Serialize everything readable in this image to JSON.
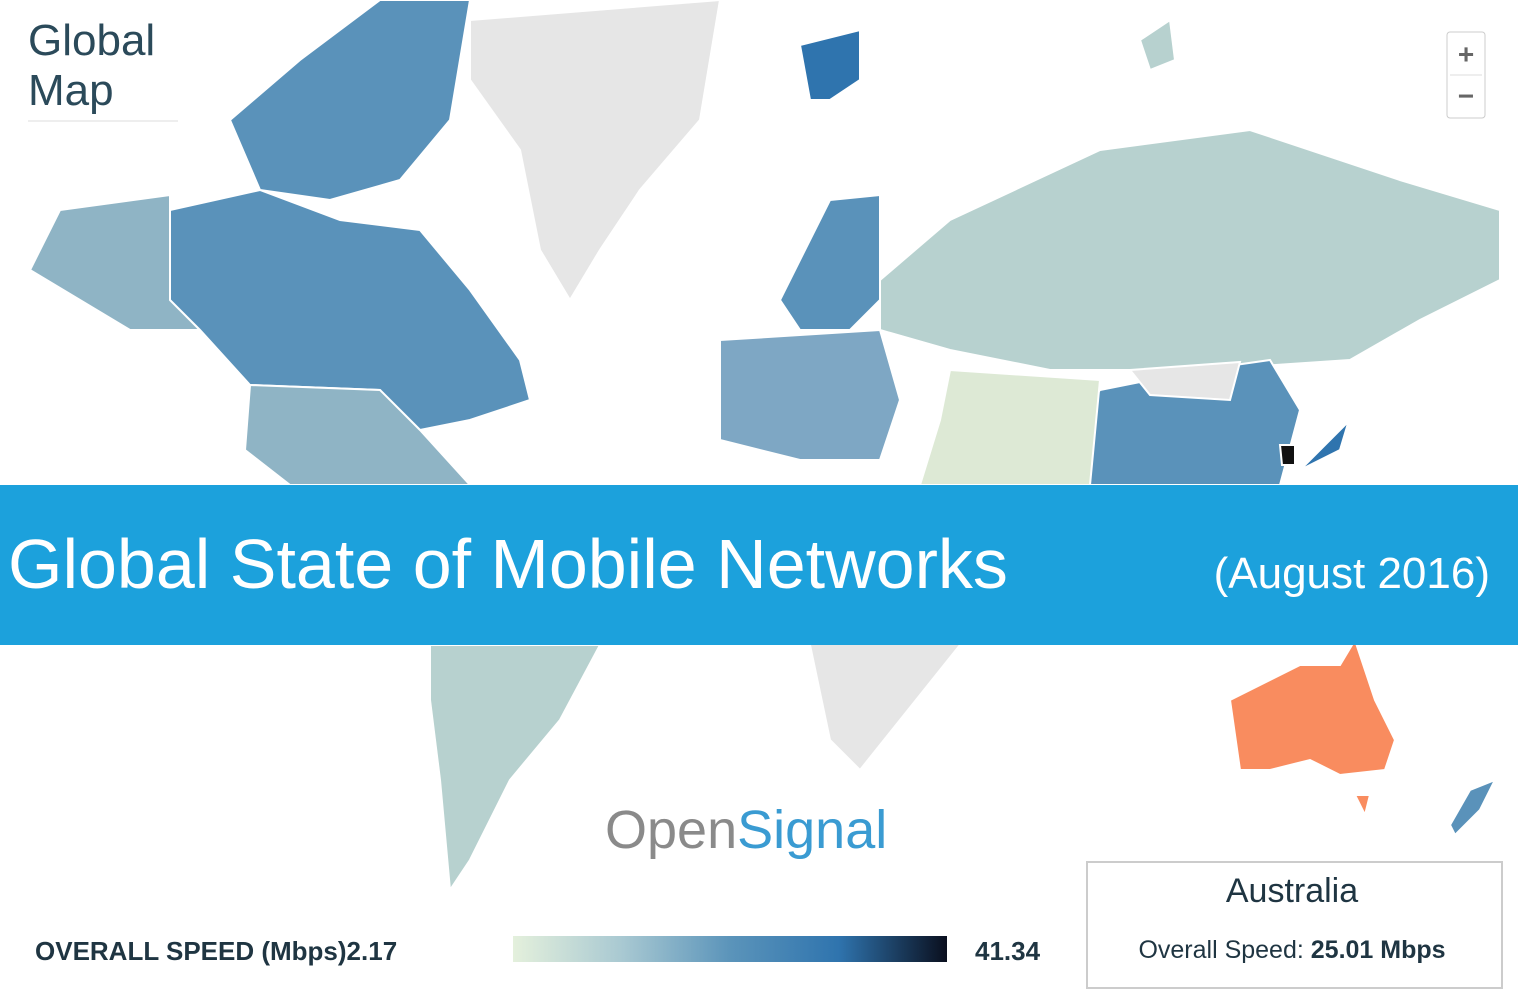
{
  "map_title": "Global Map",
  "zoom": {
    "in": "+",
    "out": "−"
  },
  "banner": {
    "title": "Global State of Mobile Networks",
    "subtitle": "(August 2016)"
  },
  "logo": {
    "first": "Open",
    "second": "Signal"
  },
  "legend": {
    "label": "OVERALL SPEED (Mbps)",
    "min": 2.17,
    "max": 41.34,
    "colors": [
      "#e4f0dc",
      "#a9c9d2",
      "#5b94ba",
      "#2f74ae",
      "#0a0f1e"
    ]
  },
  "tooltip": {
    "country": "Australia",
    "label": "Overall Speed:",
    "value": "25.01 Mbps"
  }
}
